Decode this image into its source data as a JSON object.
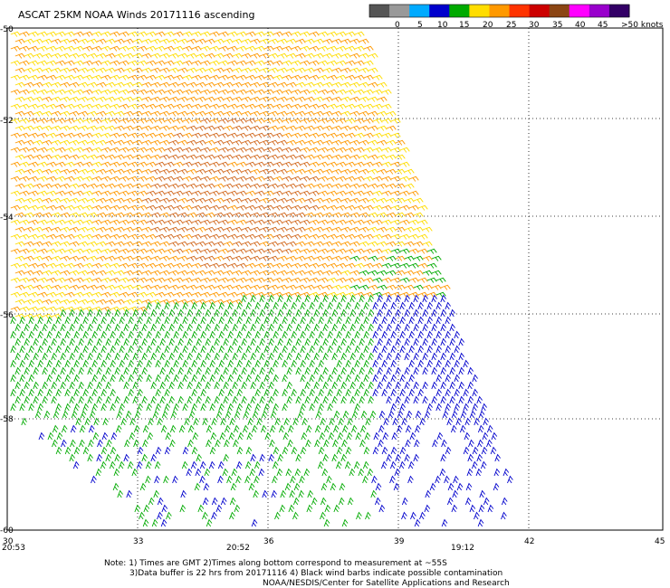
{
  "title": "ASCAT 25KM NOAA Winds 20171116 ascending",
  "legend": {
    "labels": [
      "0",
      "5",
      "10",
      "15",
      "20",
      "25",
      "30",
      "35",
      "40",
      "45",
      ">50 knots"
    ],
    "colors": [
      "#555555",
      "#999999",
      "#00aaff",
      "#0000cc",
      "#00aa00",
      "#ffdd00",
      "#ff9900",
      "#ff3300",
      "#cc0000",
      "#8b4513",
      "#ff00ff",
      "#9900cc",
      "#330066"
    ]
  },
  "map": {
    "lat_labels": [
      "-50",
      "-52",
      "-54",
      "-56",
      "-58",
      "-60"
    ],
    "lon_labels": [
      "30",
      "33",
      "36",
      "39",
      "42",
      "45"
    ],
    "time_labels": [
      "20:53",
      "20:52",
      "19:12"
    ],
    "time_color": "#800080"
  },
  "notes": [
    "Note: 1) Times are GMT 2)Times along bottom correspond to measurement at ~55S",
    "3)Data buffer is 22 hrs from 20171116 4) Black wind barbs indicate possible contamination",
    "NOAA/NESDIS/Center for Satellite Applications and Research"
  ],
  "palette": {
    "speed_colors": [
      "#0000cc",
      "#00aa00",
      "#ffdd00",
      "#ff9900",
      "#d2691e"
    ]
  }
}
